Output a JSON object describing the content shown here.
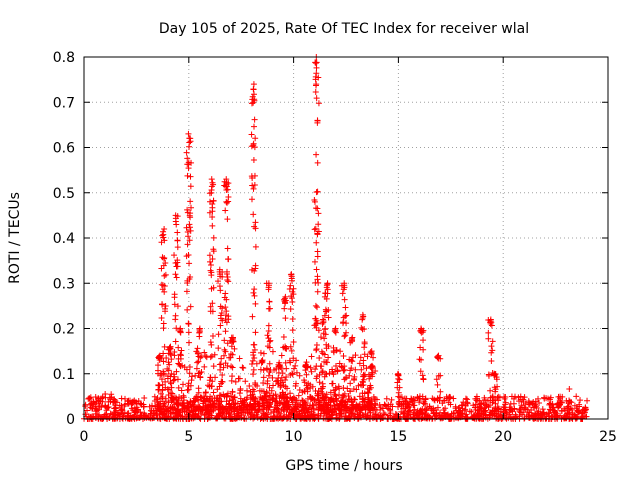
{
  "chart_data": {
    "type": "scatter",
    "title": "Day 105 of 2025, Rate Of TEC Index for receiver wlal",
    "xlabel": "GPS time / hours",
    "ylabel": "ROTI / TECUs",
    "xlim": [
      0,
      25
    ],
    "ylim": [
      0,
      0.8
    ],
    "xticks": [
      0,
      5,
      10,
      15,
      20,
      25
    ],
    "yticks": [
      0,
      0.1,
      0.2,
      0.3,
      0.4,
      0.5,
      0.6,
      0.7,
      0.8
    ],
    "grid": true,
    "marker": "+",
    "color": "#ff0000",
    "background_level": {
      "x_range": [
        0,
        24
      ],
      "typical_max": 0.05
    },
    "spikes": [
      {
        "x": 3.6,
        "y": 0.14
      },
      {
        "x": 3.8,
        "y": 0.42
      },
      {
        "x": 4.1,
        "y": 0.16
      },
      {
        "x": 4.4,
        "y": 0.45
      },
      {
        "x": 4.6,
        "y": 0.2
      },
      {
        "x": 5.0,
        "y": 0.63
      },
      {
        "x": 5.5,
        "y": 0.2
      },
      {
        "x": 6.1,
        "y": 0.53
      },
      {
        "x": 6.5,
        "y": 0.33
      },
      {
        "x": 6.8,
        "y": 0.53
      },
      {
        "x": 7.1,
        "y": 0.18
      },
      {
        "x": 8.1,
        "y": 0.74
      },
      {
        "x": 8.5,
        "y": 0.13
      },
      {
        "x": 8.8,
        "y": 0.3
      },
      {
        "x": 9.3,
        "y": 0.12
      },
      {
        "x": 9.6,
        "y": 0.27
      },
      {
        "x": 9.9,
        "y": 0.32
      },
      {
        "x": 10.6,
        "y": 0.12
      },
      {
        "x": 11.1,
        "y": 0.8
      },
      {
        "x": 11.4,
        "y": 0.22
      },
      {
        "x": 11.6,
        "y": 0.3
      },
      {
        "x": 12.0,
        "y": 0.2
      },
      {
        "x": 12.4,
        "y": 0.3
      },
      {
        "x": 12.8,
        "y": 0.18
      },
      {
        "x": 13.3,
        "y": 0.23
      },
      {
        "x": 13.7,
        "y": 0.15
      },
      {
        "x": 15.0,
        "y": 0.1
      },
      {
        "x": 16.1,
        "y": 0.2
      },
      {
        "x": 16.9,
        "y": 0.14
      },
      {
        "x": 19.4,
        "y": 0.22
      },
      {
        "x": 19.6,
        "y": 0.1
      }
    ],
    "point_count": 2600
  }
}
